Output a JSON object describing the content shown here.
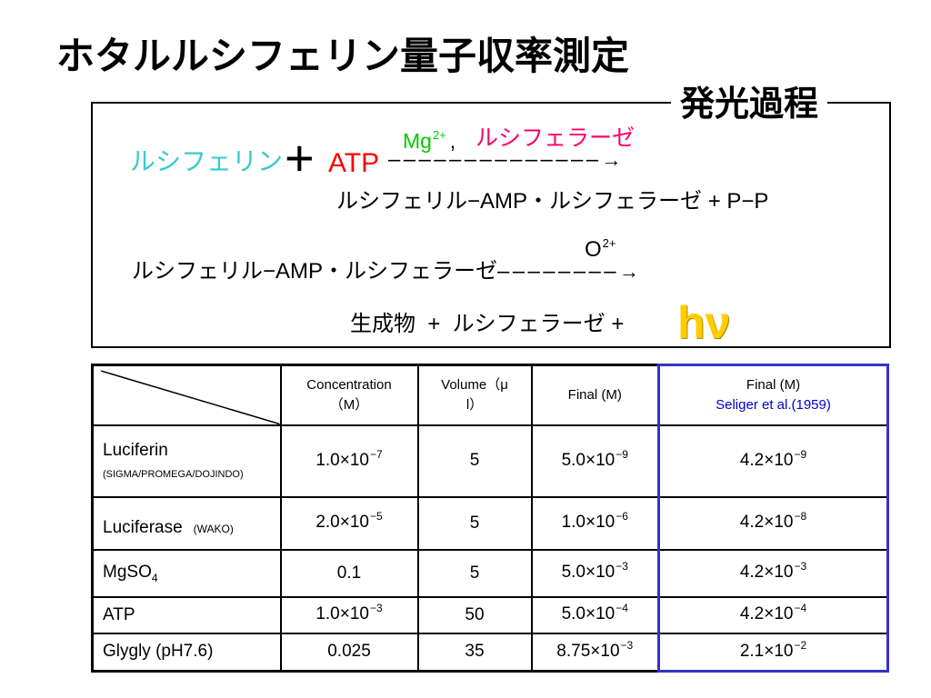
{
  "slide": {
    "title": "ホタルルシフェリン量子収率測定"
  },
  "process": {
    "label": "発光過程",
    "step1": {
      "substrate": "ルシフェリン",
      "plus": "+",
      "atp": "ATP",
      "cofactor": "Mg",
      "cofactor_charge": "2+",
      "separator": ",",
      "enzyme": "ルシフェラーゼ",
      "dashes": "––––––––––––––",
      "arrow": "→",
      "product": "ルシフェリル−AMP・ルシフェラーゼ + P−P"
    },
    "step2": {
      "oxidant": "O",
      "oxidant_charge": "2+",
      "reactant": "ルシフェリル−AMP・ルシフェラーゼ",
      "dashes": "––––––––",
      "arrow": "→",
      "products": "生成物  +  ルシフェラーゼ +",
      "light": "hν"
    }
  },
  "table": {
    "headers": {
      "concentration": [
        "Concentration",
        "（M）"
      ],
      "volume": [
        "Volume（μ",
        "l）"
      ],
      "final": "Final (M)",
      "final_ref": "Final (M)",
      "final_ref_source": "Seliger et al.(1959)"
    },
    "rows": [
      {
        "reagent": "Luciferin",
        "supplier": "(SIGMA/PROMEGA/DOJINDO)",
        "concentration": {
          "base": "1.0×10",
          "exp": "−7"
        },
        "volume": "5",
        "final": {
          "base": "5.0×10",
          "exp": "−9"
        },
        "final_ref": {
          "base": "4.2×10",
          "exp": "−9"
        }
      },
      {
        "reagent": "Luciferase",
        "supplier": "(WAKO)",
        "concentration": {
          "base": "2.0×10",
          "exp": "−5"
        },
        "volume": "5",
        "final": {
          "base": "1.0×10",
          "exp": "−6"
        },
        "final_ref": {
          "base": "4.2×10",
          "exp": "−8"
        }
      },
      {
        "reagent": "MgSO",
        "reagent_subscript": "4",
        "concentration": {
          "base": "0.1"
        },
        "volume": "5",
        "final": {
          "base": "5.0×10",
          "exp": "−3"
        },
        "final_ref": {
          "base": "4.2×10",
          "exp": "−3"
        }
      },
      {
        "reagent": "ATP",
        "concentration": {
          "base": "1.0×10",
          "exp": "−3"
        },
        "volume": "50",
        "final": {
          "base": "5.0×10",
          "exp": "−4"
        },
        "final_ref": {
          "base": "4.2×10",
          "exp": "−4"
        }
      },
      {
        "reagent": "Glygly (pH7.6)",
        "concentration": {
          "base": "0.025"
        },
        "volume": "35",
        "final": {
          "base": "8.75×10",
          "exp": "−3"
        },
        "final_ref": {
          "base": "2.1×10",
          "exp": "−2"
        }
      }
    ]
  },
  "colors": {
    "substrate": "#33cccc",
    "atp": "#ff0000",
    "cofactor": "#00cc00",
    "enzyme": "#ff0066",
    "light": "#ffcc00",
    "reference_border": "#3333cc",
    "reference_source": "#0000cc"
  }
}
